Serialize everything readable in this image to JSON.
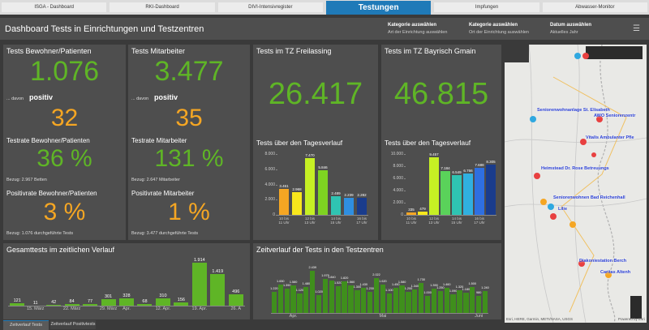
{
  "tabs": {
    "items": [
      "ISGA - Dashboard",
      "RKI-Dashboard",
      "DIVI-Intensivregister",
      "Testungen",
      "Impfungen",
      "Abwasser-Monitor"
    ],
    "active": 3
  },
  "header": {
    "title": "Dashboard Tests in Einrichtungen und Testzentren",
    "selectors": [
      {
        "label": "Kategorie auswählen",
        "sub": "Art der Einrichtung auswählen"
      },
      {
        "label": "Kategorie auswählen",
        "sub": "Ort der Einrichtung auswählen"
      },
      {
        "label": "Datum auswählen",
        "sub": "Aktuelles Jahr"
      }
    ]
  },
  "panels": [
    {
      "title": "Tests Bewohner/Patienten",
      "total": "1.076",
      "davon": "... davon",
      "positiv": "positiv",
      "positive": "32",
      "rate_label": "Testrate Bewohner/Patienten",
      "rate": "36 %",
      "rate_basis": "Bezug: 2.967 Betten",
      "pos_rate_label": "Positivrate Bewohner/Patienten",
      "pos_rate": "3 %",
      "pos_rate_basis": "Bezug: 1.076 durchgeführte Tests"
    },
    {
      "title": "Tests Mitarbeiter",
      "total": "3.477",
      "davon": "... davon",
      "positiv": "positiv",
      "positive": "35",
      "rate_label": "Testrate Mitarbeiter",
      "rate": "131 %",
      "rate_basis": "Bezug: 2.647 Mitarbeiter",
      "pos_rate_label": "Positivrate Mitarbeiter",
      "pos_rate": "1 %",
      "pos_rate_basis": "Bezug: 3.477 durchgeführte Tests"
    }
  ],
  "testzentren": [
    {
      "title": "Tests im TZ Freilassing",
      "total": "26.417",
      "chart_data": {
        "type": "bar",
        "title": "Tests über den Tagesverlauf",
        "categories": [
          "10 bis 11 Uhr",
          null,
          "12 bis 13 Uhr",
          null,
          "14 bis 15 Uhr",
          null,
          "16 bis 17 Uhr"
        ],
        "values": [
          3461,
          2968,
          7470,
          5846,
          2489,
          2239,
          2282
        ],
        "value_labels": [
          "3.461",
          "2.968",
          "7.470",
          "5.846",
          "2.489",
          "2.239",
          "2.282"
        ],
        "colors": [
          "#f5a623",
          "#f8e71c",
          "#c6f024",
          "#7ed321",
          "#2fc4b2",
          "#2f8fe0",
          "#1a3c8c"
        ],
        "ylim": [
          0,
          8000
        ],
        "yticks": [
          0,
          {
            "value": 2000,
            "label": "2.000"
          },
          {
            "value": 4000,
            "label": "4.000"
          },
          {
            "value": 6000,
            "label": "6.000"
          },
          {
            "value": 8000,
            "label": "8.000"
          }
        ]
      }
    },
    {
      "title": "Tests im TZ Bayrisch Gmain",
      "total": "46.815",
      "chart_data": {
        "type": "bar",
        "title": "Tests über den Tagesverlauf",
        "categories": [
          "10 bis 11 Uhr",
          null,
          "12 bis 13 Uhr",
          null,
          "14 bis 15 Uhr",
          null,
          "16 bis 17 Uhr",
          null
        ],
        "values": [
          335,
          479,
          9457,
          7184,
          6549,
          6766,
          7688,
          8305
        ],
        "value_labels": [
          "335",
          "479",
          "9.457",
          "7.184",
          "6.549",
          "6.766",
          "7.688",
          "8.305"
        ],
        "colors": [
          "#f5a623",
          "#f8e71c",
          "#c6f024",
          "#5ad25a",
          "#2fc4b2",
          "#30b0e0",
          "#2f6fe0",
          "#1a3c8c"
        ],
        "ylim": [
          0,
          10000
        ],
        "yticks": [
          0,
          {
            "value": 2000,
            "label": "2.000"
          },
          {
            "value": 4000,
            "label": "4.000"
          },
          {
            "value": 6000,
            "label": "6.000"
          },
          {
            "value": 8000,
            "label": "8.000"
          },
          {
            "value": 10000,
            "label": "10.000"
          }
        ]
      }
    }
  ],
  "timeline": {
    "chart_data": {
      "type": "bar",
      "title": "Gesamttests im zeitlichen Verlauf",
      "color": "#5fb526",
      "categories": [
        null,
        "15. März",
        null,
        "22. März",
        null,
        "29. März",
        "Apr.",
        null,
        "12. Apr.",
        null,
        "19. Apr.",
        null,
        "26. A"
      ],
      "values": [
        121,
        11,
        42,
        84,
        77,
        301,
        328,
        68,
        310,
        156,
        1914,
        1419,
        496
      ],
      "value_labels": [
        "121",
        "11",
        "42",
        "84",
        "77",
        "301",
        "328",
        "68",
        "310",
        "156",
        "1.914",
        "1.419",
        "496"
      ],
      "ylim": [
        0,
        2000
      ]
    }
  },
  "testcenter_timeline": {
    "chart_data": {
      "type": "bar",
      "title": "Zeitverlauf der Tests in den Testzentren",
      "color": "#3f8f1c",
      "categories": [
        null,
        null,
        null,
        "Apr.",
        null,
        null,
        null,
        null,
        null,
        null,
        null,
        null,
        null,
        null,
        null,
        null,
        null,
        "Mai",
        null,
        null,
        null,
        null,
        null,
        null,
        null,
        null,
        null,
        null,
        null,
        null,
        null,
        null,
        "Juni",
        null
      ],
      "values": [
        1220,
        1650,
        1390,
        1580,
        1120,
        1480,
        2439,
        1020,
        1975,
        1840,
        1520,
        1820,
        1560,
        1300,
        1430,
        1230,
        2022,
        1620,
        1100,
        1450,
        1580,
        1200,
        1340,
        1730,
        1000,
        1390,
        1250,
        1460,
        1090,
        1320,
        1180,
        1500,
        980,
        1240
      ],
      "value_labels": [
        "1.220",
        "1.650",
        "1.390",
        "1.580",
        "1.120",
        "1.480",
        "2.439",
        "1.020",
        "1.975",
        "1.840",
        "1.520",
        "1.820",
        "1.560",
        "1.300",
        "1.430",
        "1.230",
        "2.022",
        "1.620",
        "1.100",
        "1.450",
        "1.580",
        "1.200",
        "1.340",
        "1.730",
        "1.000",
        "1.390",
        "1.250",
        "1.460",
        "1.090",
        "1.320",
        "1.180",
        "1.500",
        "980",
        "1.240"
      ],
      "ylim": [
        0,
        2700
      ]
    }
  },
  "map": {
    "labels": [
      "Seniorenwohnanlage St. Elisabeth",
      "AWO Seniorenzentr",
      "Vitalis Ambulanter Pfle",
      "Heimstead Dr. Rose Betreuungs",
      "Seniorenwohnen Bad Reichenhall",
      "Lilie",
      "Diakoniestation Berch",
      "Caritas Altenh"
    ],
    "attribution": "Esri, HERE, Garmin, METI/NASA, USGS",
    "powered": "Powered by Esri"
  },
  "bottom_tabs": [
    "Zeitverlauf Tests",
    "Zeitverlauf Positivtests"
  ]
}
